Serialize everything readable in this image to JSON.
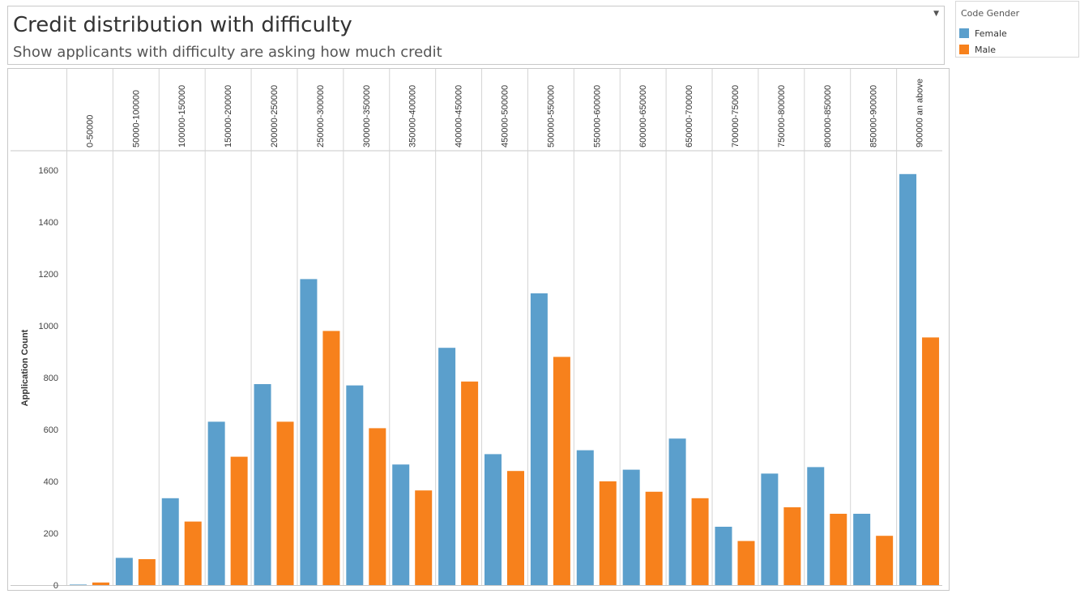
{
  "header": {
    "title": "Credit distribution with difficulty",
    "subtitle": "Show applicants with difficulty are asking how much credit"
  },
  "legend": {
    "title": "Code Gender",
    "items": [
      {
        "label": "Female",
        "color": "#5b9fcc"
      },
      {
        "label": "Male",
        "color": "#f7811c"
      }
    ]
  },
  "chart_data": {
    "type": "bar",
    "ylabel": "Application Count",
    "ylim": [
      0,
      1650
    ],
    "yticks": [
      0,
      200,
      400,
      600,
      800,
      1000,
      1200,
      1400,
      1600
    ],
    "grid": false,
    "categories": [
      "0-50000",
      "50000-100000",
      "100000-150000",
      "150000-200000",
      "200000-250000",
      "250000-300000",
      "300000-350000",
      "350000-400000",
      "400000-450000",
      "450000-500000",
      "500000-550000",
      "550000-600000",
      "600000-650000",
      "650000-700000",
      "700000-750000",
      "750000-800000",
      "800000-850000",
      "850000-900000",
      "900000 an above"
    ],
    "series": [
      {
        "name": "Female",
        "color": "#5b9fcc",
        "values": [
          2,
          105,
          335,
          630,
          775,
          1180,
          770,
          465,
          915,
          505,
          1125,
          520,
          445,
          565,
          225,
          430,
          455,
          275,
          1585
        ]
      },
      {
        "name": "Male",
        "color": "#f7811c",
        "values": [
          10,
          100,
          245,
          495,
          630,
          980,
          605,
          365,
          785,
          440,
          880,
          400,
          360,
          335,
          170,
          300,
          275,
          190,
          955
        ]
      }
    ]
  }
}
